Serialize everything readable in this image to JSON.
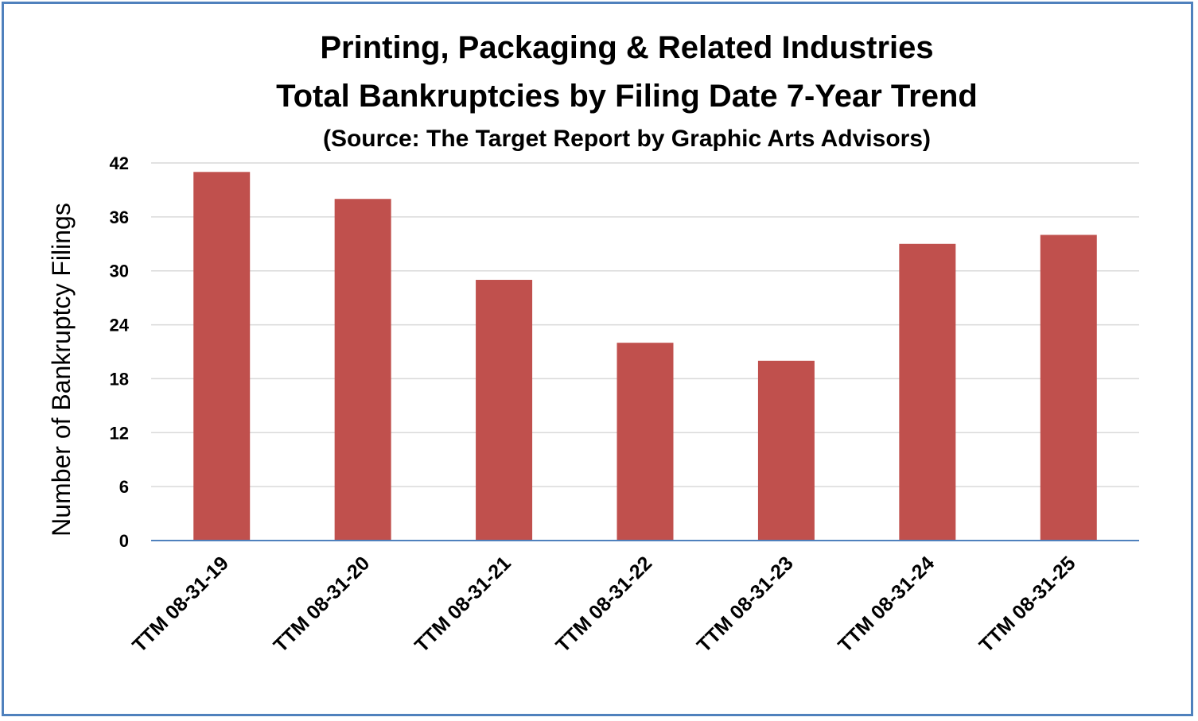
{
  "chart_data": {
    "type": "bar",
    "title": "Printing, Packaging & Related Industries",
    "subtitle": "Total Bankruptcies by Filing Date 7-Year Trend",
    "source": "(Source: The Target Report by Graphic Arts Advisors)",
    "xlabel": "",
    "ylabel": "Number of Bankruptcy Filings",
    "categories": [
      "TTM 08-31-19",
      "TTM 08-31-20",
      "TTM 08-31-21",
      "TTM 08-31-22",
      "TTM 08-31-23",
      "TTM 08-31-24",
      "TTM 08-31-25"
    ],
    "values": [
      41,
      38,
      29,
      22,
      20,
      33,
      34
    ],
    "ylim": [
      0,
      42
    ],
    "yticks": [
      0,
      6,
      12,
      18,
      24,
      30,
      36,
      42
    ],
    "grid": true,
    "legend": "none",
    "colors": {
      "bar": "#c0504d",
      "axis": "#4f81bd",
      "grid": "#d9d9d9",
      "border": "#4f81bd"
    }
  }
}
